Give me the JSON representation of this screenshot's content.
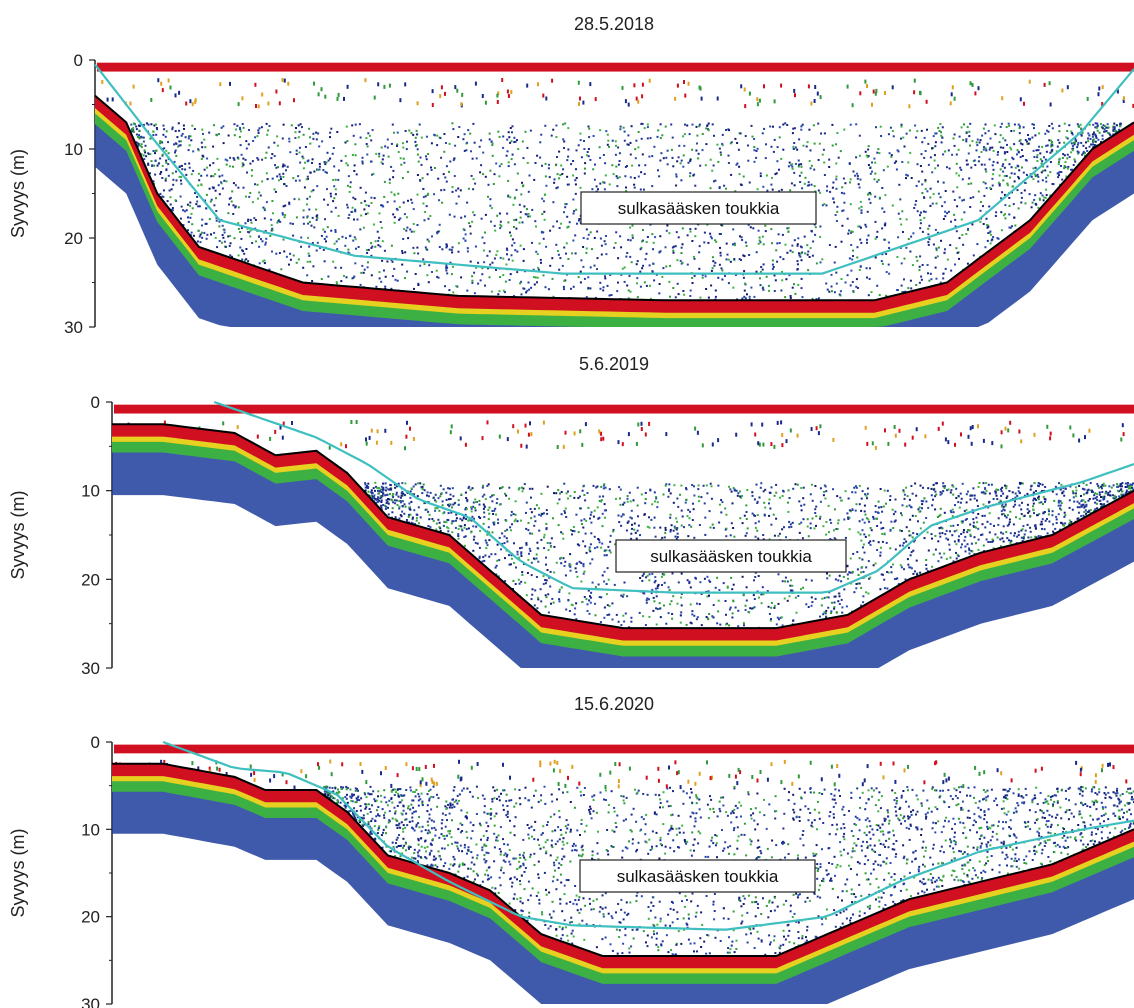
{
  "chart_data": [
    {
      "type": "heatmap",
      "title": "28.5.2018",
      "ylabel": "Syvyys (m)",
      "yticks": [
        0,
        10,
        20,
        30
      ],
      "ylim": [
        0,
        30
      ],
      "annotation": "sulkasääsken toukkia",
      "bottom_depth_profile": [
        [
          0,
          4
        ],
        [
          0.03,
          7
        ],
        [
          0.06,
          15
        ],
        [
          0.1,
          21
        ],
        [
          0.2,
          25
        ],
        [
          0.35,
          26.5
        ],
        [
          0.55,
          27
        ],
        [
          0.75,
          27
        ],
        [
          0.82,
          25
        ],
        [
          0.9,
          18
        ],
        [
          0.96,
          10
        ],
        [
          1,
          7
        ]
      ],
      "teal_line_profile": [
        [
          0,
          0.5
        ],
        [
          0.05,
          8
        ],
        [
          0.12,
          18
        ],
        [
          0.25,
          22
        ],
        [
          0.45,
          24
        ],
        [
          0.7,
          24
        ],
        [
          0.85,
          18
        ],
        [
          0.95,
          8
        ],
        [
          1,
          1
        ]
      ]
    },
    {
      "type": "heatmap",
      "title": "5.6.2019",
      "ylabel": "Syvyys (m)",
      "yticks": [
        0,
        10,
        20,
        30
      ],
      "ylim": [
        0,
        30
      ],
      "annotation": "sulkasääsken toukkia",
      "bottom_depth_profile": [
        [
          0,
          2.5
        ],
        [
          0.05,
          2.5
        ],
        [
          0.12,
          3.5
        ],
        [
          0.16,
          6
        ],
        [
          0.2,
          5.5
        ],
        [
          0.23,
          8
        ],
        [
          0.27,
          13
        ],
        [
          0.33,
          15
        ],
        [
          0.37,
          19
        ],
        [
          0.42,
          24
        ],
        [
          0.5,
          25.5
        ],
        [
          0.65,
          25.5
        ],
        [
          0.72,
          24
        ],
        [
          0.78,
          20
        ],
        [
          0.85,
          17
        ],
        [
          0.92,
          15
        ],
        [
          1,
          10
        ]
      ],
      "teal_line_profile": [
        [
          0.1,
          0
        ],
        [
          0.15,
          2
        ],
        [
          0.2,
          4
        ],
        [
          0.25,
          7
        ],
        [
          0.3,
          11
        ],
        [
          0.35,
          13
        ],
        [
          0.4,
          18
        ],
        [
          0.45,
          21
        ],
        [
          0.55,
          21.5
        ],
        [
          0.7,
          21.5
        ],
        [
          0.75,
          19
        ],
        [
          0.8,
          14
        ],
        [
          0.85,
          12
        ],
        [
          0.95,
          9
        ],
        [
          1,
          7
        ]
      ]
    },
    {
      "type": "heatmap",
      "title": "15.6.2020",
      "ylabel": "Syvyys (m)",
      "yticks": [
        0,
        10,
        20,
        30
      ],
      "ylim": [
        0,
        30
      ],
      "annotation": "sulkasääsken toukkia",
      "bottom_depth_profile": [
        [
          0,
          2.5
        ],
        [
          0.05,
          2.5
        ],
        [
          0.12,
          4
        ],
        [
          0.15,
          5.5
        ],
        [
          0.2,
          5.5
        ],
        [
          0.23,
          8
        ],
        [
          0.27,
          13
        ],
        [
          0.33,
          15
        ],
        [
          0.37,
          17
        ],
        [
          0.42,
          22
        ],
        [
          0.48,
          24.5
        ],
        [
          0.65,
          24.5
        ],
        [
          0.72,
          21
        ],
        [
          0.78,
          18
        ],
        [
          0.85,
          16
        ],
        [
          0.92,
          14
        ],
        [
          1,
          10
        ]
      ],
      "teal_line_profile": [
        [
          0.05,
          0
        ],
        [
          0.12,
          3
        ],
        [
          0.17,
          3.5
        ],
        [
          0.22,
          6
        ],
        [
          0.27,
          12
        ],
        [
          0.33,
          16
        ],
        [
          0.4,
          20
        ],
        [
          0.45,
          21
        ],
        [
          0.6,
          21.5
        ],
        [
          0.7,
          20
        ],
        [
          0.77,
          16
        ],
        [
          0.85,
          12.5
        ],
        [
          0.95,
          10
        ],
        [
          1,
          9
        ]
      ]
    }
  ]
}
